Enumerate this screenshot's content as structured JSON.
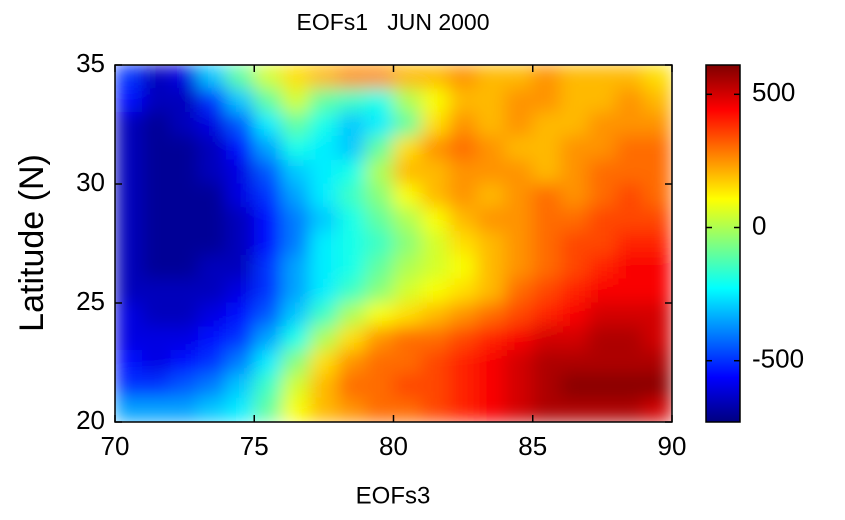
{
  "chart_data": {
    "type": "heatmap",
    "title": "EOFs1   JUN 2000",
    "xlabel": "EOFs3",
    "ylabel": "Latitude (N)",
    "x": [
      70.5,
      71.5,
      72.5,
      73.5,
      74.5,
      75.5,
      76.5,
      77.5,
      78.5,
      79.5,
      80.5,
      81.5,
      82.5,
      83.5,
      84.5,
      85.5,
      86.5,
      87.5,
      88.5,
      89.5
    ],
    "y": [
      34.5,
      33.5,
      32.5,
      31.5,
      30.5,
      29.5,
      28.5,
      27.5,
      26.5,
      25.5,
      24.5,
      23.5,
      22.5,
      21.5,
      20.5
    ],
    "z": [
      [
        -500,
        -650,
        -600,
        -300,
        -100,
        50,
        150,
        200,
        250,
        250,
        200,
        200,
        250,
        200,
        200,
        250,
        200,
        200,
        200,
        150
      ],
      [
        -550,
        -650,
        -650,
        -500,
        -300,
        -100,
        50,
        -100,
        -150,
        -200,
        0,
        100,
        200,
        200,
        250,
        250,
        200,
        200,
        250,
        200
      ],
      [
        -650,
        -700,
        -650,
        -600,
        -450,
        -250,
        -100,
        -200,
        -300,
        -250,
        -100,
        150,
        250,
        200,
        250,
        200,
        200,
        250,
        250,
        250
      ],
      [
        -650,
        -700,
        -700,
        -650,
        -550,
        -350,
        -200,
        -250,
        -300,
        -100,
        150,
        250,
        300,
        250,
        200,
        200,
        250,
        250,
        300,
        300
      ],
      [
        -650,
        -700,
        -700,
        -650,
        -600,
        -450,
        -300,
        -250,
        -200,
        0,
        200,
        200,
        250,
        250,
        250,
        200,
        250,
        300,
        300,
        300
      ],
      [
        -650,
        -700,
        -700,
        -700,
        -600,
        -500,
        -350,
        -250,
        -150,
        -50,
        100,
        200,
        250,
        200,
        250,
        300,
        250,
        300,
        350,
        300
      ],
      [
        -650,
        -700,
        -700,
        -700,
        -650,
        -550,
        -400,
        -300,
        -200,
        -100,
        0,
        100,
        200,
        250,
        250,
        300,
        300,
        350,
        350,
        350
      ],
      [
        -650,
        -700,
        -700,
        -700,
        -650,
        -550,
        -400,
        -250,
        -200,
        -150,
        -50,
        50,
        150,
        200,
        250,
        300,
        350,
        350,
        400,
        400
      ],
      [
        -650,
        -700,
        -700,
        -650,
        -650,
        -500,
        -350,
        -250,
        -200,
        -100,
        0,
        50,
        100,
        200,
        250,
        300,
        350,
        400,
        450,
        450
      ],
      [
        -650,
        -650,
        -650,
        -650,
        -600,
        -500,
        -350,
        -250,
        -150,
        -50,
        50,
        100,
        150,
        200,
        300,
        350,
        400,
        450,
        450,
        450
      ],
      [
        -600,
        -650,
        -650,
        -600,
        -550,
        -450,
        -300,
        -150,
        0,
        100,
        150,
        200,
        250,
        300,
        350,
        400,
        450,
        500,
        500,
        500
      ],
      [
        -600,
        -600,
        -600,
        -550,
        -500,
        -350,
        -200,
        0,
        150,
        250,
        300,
        300,
        350,
        400,
        450,
        500,
        500,
        550,
        550,
        500
      ],
      [
        -550,
        -600,
        -550,
        -500,
        -400,
        -250,
        -50,
        150,
        250,
        300,
        300,
        350,
        400,
        450,
        500,
        550,
        550,
        550,
        550,
        550
      ],
      [
        -500,
        -500,
        -450,
        -400,
        -300,
        -150,
        50,
        200,
        300,
        300,
        350,
        350,
        400,
        450,
        500,
        550,
        600,
        600,
        600,
        600
      ],
      [
        -350,
        -350,
        -350,
        -300,
        -250,
        -100,
        100,
        200,
        250,
        300,
        300,
        350,
        400,
        450,
        500,
        550,
        550,
        550,
        550,
        500
      ]
    ],
    "xlim": [
      70,
      90
    ],
    "ylim": [
      20,
      35
    ],
    "xticks": [
      70,
      75,
      80,
      85,
      90
    ],
    "yticks": [
      20,
      25,
      30,
      35
    ],
    "clim": [
      -730,
      610
    ],
    "cticks": [
      -500,
      0,
      500
    ],
    "colormap": "jet"
  }
}
